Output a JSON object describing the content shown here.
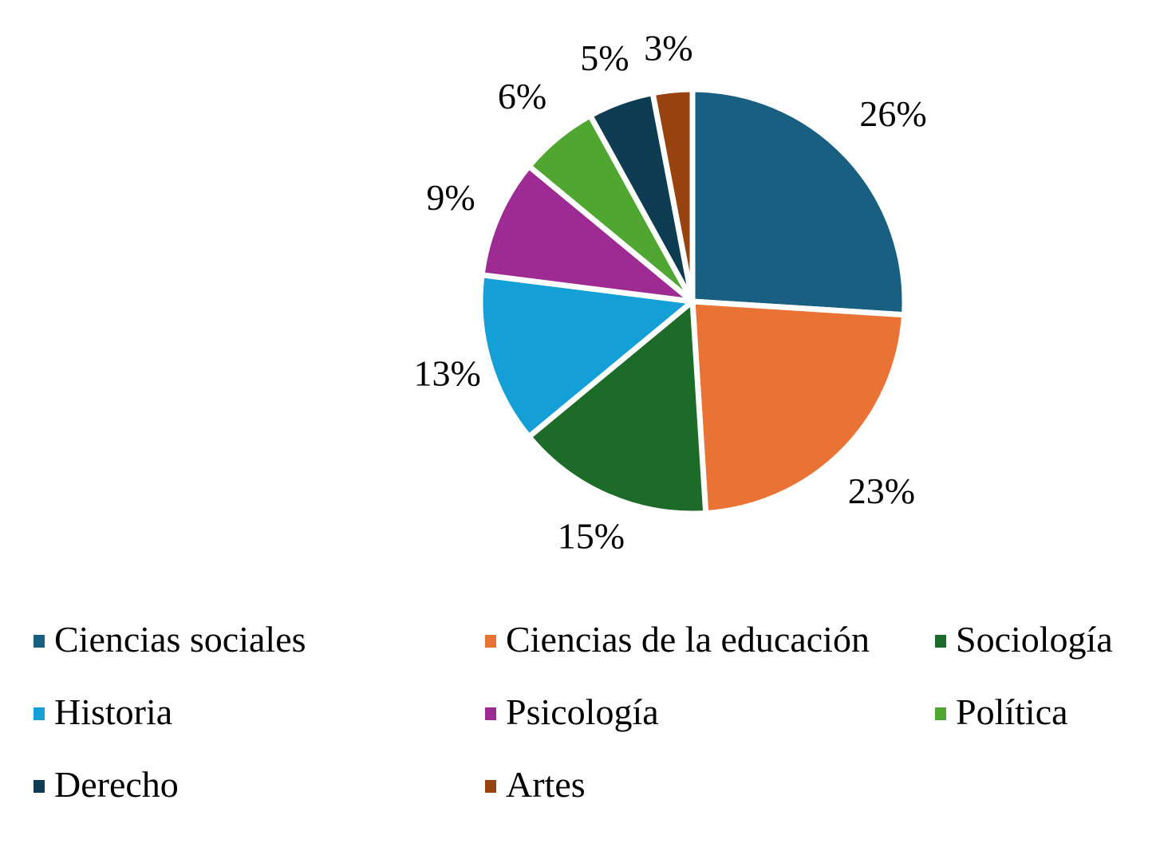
{
  "chart_data": {
    "type": "pie",
    "title": "",
    "start_angle_deg": 0,
    "direction": "clockwise",
    "categories": [
      "Ciencias sociales",
      "Ciencias de la educación",
      "Sociología",
      "Historia",
      "Psicología",
      "Política",
      "Derecho",
      "Artes"
    ],
    "values": [
      26,
      23,
      15,
      13,
      9,
      6,
      5,
      3
    ],
    "labels": [
      "26%",
      "23%",
      "15%",
      "13%",
      "9%",
      "6%",
      "5%",
      "3%"
    ],
    "colors": [
      "#195F81",
      "#E87334",
      "#1C6B28",
      "#14A0D6",
      "#9E2A93",
      "#4FA731",
      "#0E3C52",
      "#98420F"
    ],
    "legend_position": "bottom"
  },
  "legend": {
    "items": [
      {
        "label": "Ciencias sociales",
        "color": "#195F81"
      },
      {
        "label": "Ciencias de la educación",
        "color": "#E87334"
      },
      {
        "label": "Sociología",
        "color": "#1C6B28"
      },
      {
        "label": "Historia",
        "color": "#14A0D6"
      },
      {
        "label": "Psicología",
        "color": "#9E2A93"
      },
      {
        "label": "Política",
        "color": "#4FA731"
      },
      {
        "label": "Derecho",
        "color": "#0E3C52"
      },
      {
        "label": "Artes",
        "color": "#98420F"
      }
    ]
  }
}
